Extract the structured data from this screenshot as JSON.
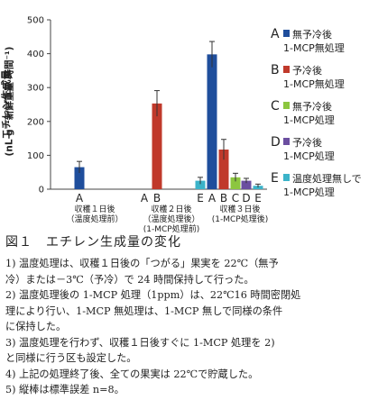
{
  "chart_data": {
    "type": "bar",
    "ylabel_line1": "エチレン生成量",
    "ylabel_line2": "(nL g⁻¹新鮮重量 時間⁻¹)",
    "ylim": [
      0,
      500
    ],
    "yticks": [
      0,
      100,
      200,
      300,
      400,
      500
    ],
    "treatment_keys": [
      "A",
      "B",
      "C",
      "D",
      "E"
    ],
    "series": [
      {
        "key": "A",
        "name_line1": "無予冷後",
        "name_line2": "1-MCP無処理",
        "color": "#1f4e9c"
      },
      {
        "key": "B",
        "name_line1": "予冷後",
        "name_line2": "1-MCP無処理",
        "color": "#c0392b"
      },
      {
        "key": "C",
        "name_line1": "無予冷後",
        "name_line2": "1-MCP処理",
        "color": "#8cc63f"
      },
      {
        "key": "D",
        "name_line1": "予冷後",
        "name_line2": "1-MCP処理",
        "color": "#6b4ea0"
      },
      {
        "key": "E",
        "name_line1": "温度処理無しで",
        "name_line2": "1-MCP処理",
        "color": "#3bb3c9"
      }
    ],
    "groups": [
      {
        "day_line1": "収穫１日後",
        "day_line2": "（温度処理前）",
        "bars": [
          {
            "key": "A",
            "value": 65,
            "err": 17
          }
        ]
      },
      {
        "day_line1": "収穫２日後",
        "day_line2": "（温度処理後）",
        "day_line3": "(1-MCP処理前)",
        "bars": [
          {
            "key": "B",
            "value": 253,
            "err": 38
          },
          {
            "key": "E",
            "value": 25,
            "err": 10
          }
        ]
      },
      {
        "day_line1": "収穫３日後",
        "day_line2": "(1-MCP処理後)",
        "bars": [
          {
            "key": "A",
            "value": 398,
            "err": 38
          },
          {
            "key": "B",
            "value": 117,
            "err": 30
          },
          {
            "key": "C",
            "value": 35,
            "err": 12
          },
          {
            "key": "D",
            "value": 25,
            "err": 7
          },
          {
            "key": "E",
            "value": 10,
            "err": 5
          }
        ]
      }
    ]
  },
  "caption": {
    "title": "図１　エチレン生成量の変化",
    "notes": [
      "1) 温度処理は、収穫１日後の「つがる」果実を 22℃（無予",
      "   冷）または－3℃（予冷）で 24 時間保持して行った。",
      "2) 温度処理後の 1-MCP 処理（1ppm）は、22℃16 時間密閉処",
      "   理により行い、1-MCP 無処理は、1-MCP 無しで同様の条件",
      "   に保持した。",
      "3) 温度処理を行わず、収穫１日後すぐに 1-MCP 処理を 2)",
      "   と同様に行う区も設定した。",
      "4) 上記の処理終了後、全ての果実は 22℃で貯蔵した。",
      "5) 縦棒は標準誤差 n=8。"
    ]
  }
}
